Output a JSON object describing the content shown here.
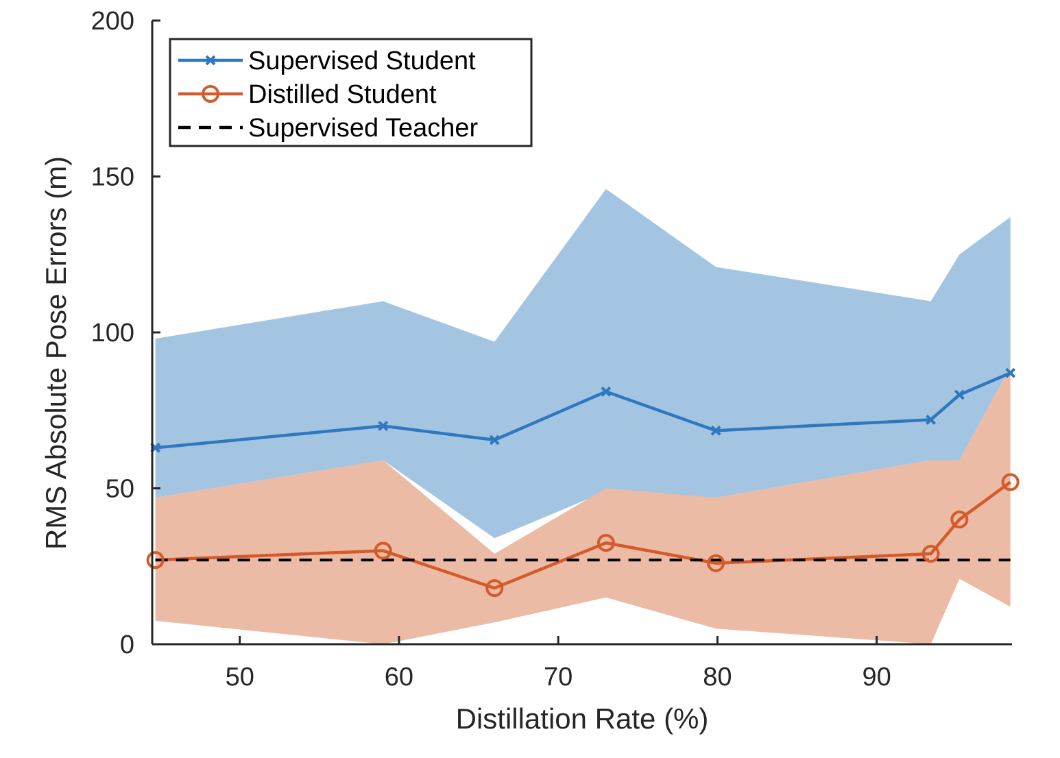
{
  "chart_data": {
    "type": "line",
    "title": "",
    "xlabel": "Distillation Rate (%)",
    "ylabel": "RMS Absolute Pose Errors (m)",
    "xlim": [
      44.5,
      98.5
    ],
    "ylim": [
      0,
      200
    ],
    "xticks": [
      50,
      60,
      70,
      80,
      90
    ],
    "yticks": [
      0,
      50,
      100,
      150,
      200
    ],
    "grid": false,
    "legend_position": "top-left",
    "series": [
      {
        "name": "Supervised Student",
        "color": "#2f78c0",
        "band_color": "#a3c5e1",
        "marker": "x",
        "x": [
          44.7,
          59,
          66,
          73,
          79.9,
          93.4,
          95.2,
          98.4
        ],
        "y": [
          63,
          70,
          65.5,
          81,
          68.5,
          72,
          80,
          87
        ],
        "upper": [
          98,
          110,
          97,
          146,
          121,
          110,
          125,
          137
        ],
        "lower": [
          47,
          59,
          34,
          49,
          47,
          59,
          59,
          89
        ]
      },
      {
        "name": "Distilled Student",
        "color": "#d55a29",
        "band_color": "#ebbba5",
        "marker": "o",
        "x": [
          44.7,
          59,
          66,
          73,
          79.9,
          93.4,
          95.2,
          98.4
        ],
        "y": [
          27,
          30,
          18,
          32.5,
          26,
          29,
          40,
          52
        ],
        "upper": [
          47,
          59,
          29,
          50,
          47,
          59,
          59,
          89
        ],
        "lower": [
          7.5,
          0,
          7,
          15,
          5,
          0,
          21,
          12
        ]
      },
      {
        "name": "Supervised Teacher",
        "color": "#000000",
        "style": "dashed",
        "x": [
          44.7,
          98.4
        ],
        "y": [
          27,
          27
        ]
      }
    ]
  }
}
